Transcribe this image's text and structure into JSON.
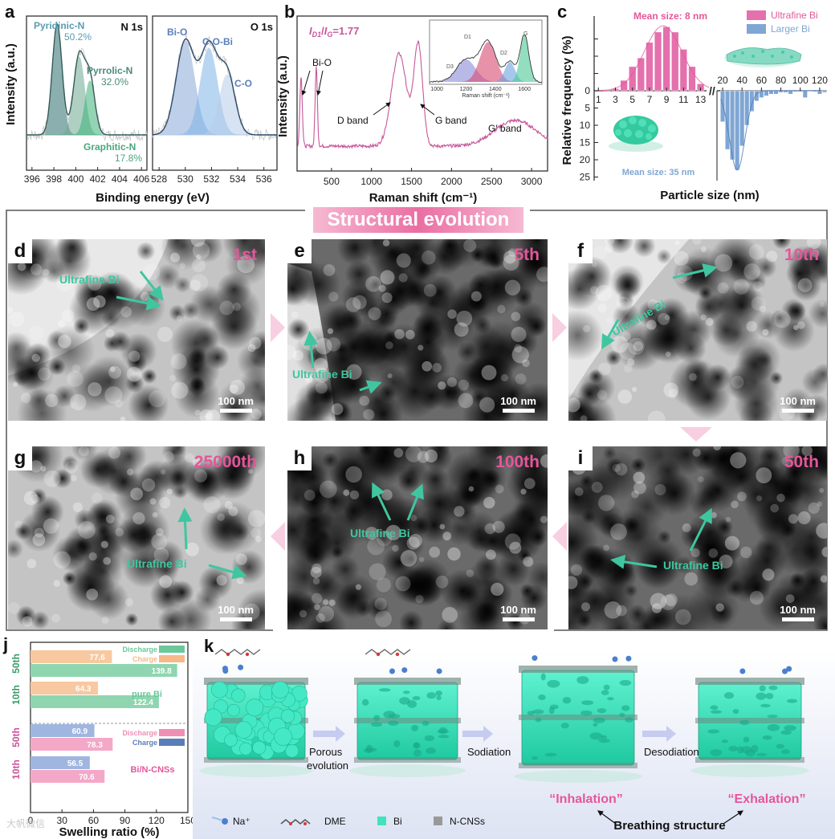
{
  "panels": {
    "a": {
      "letter": "a",
      "n1s_title": "N 1s",
      "o1s_title": "O 1s",
      "ylabel": "Intensity (a.u.)",
      "xlabel": "Binding energy (eV)",
      "n_labels": {
        "pyridinic": "Pyridinic-N",
        "pyridinic_pct": "50.2%",
        "pyrrolic": "Pyrrolic-N",
        "pyrrolic_pct": "32.0%",
        "graphitic": "Graphitic-N",
        "graphitic_pct": "17.8%"
      },
      "o_labels": {
        "bio": "Bi-O",
        "cobi": "C-O-Bi",
        "co": "C-O"
      }
    },
    "b": {
      "letter": "b",
      "ratio_label": "I_D1/I_G=1.77",
      "ratio_parts": [
        "I",
        "D1",
        "/",
        "I",
        "G",
        "=1.77"
      ],
      "ylabel": "Intensity (a.u.)",
      "xlabel": "Raman shift (cm⁻¹)",
      "ann_bio": "Bi-O",
      "ann_d": "D band",
      "ann_g": "G band",
      "ann_g2": "G′ band",
      "inset": {
        "xlabel": "Raman shift (cm⁻¹)",
        "ticks": [
          "1000",
          "1200",
          "1400",
          "1600"
        ],
        "peaks": [
          "D3",
          "D1",
          "D2",
          "G"
        ]
      }
    },
    "c": {
      "letter": "c",
      "ylabel": "Relative frequency (%)",
      "xlabel": "Particle size (nm)",
      "legend_ultra": "Ultrafine Bi",
      "legend_larger": "Larger Bi",
      "mean_ultra": "Mean size: 8 nm",
      "mean_larger": "Mean size: 35 nm",
      "break_mark": "//"
    },
    "j": {
      "letter": "j",
      "xlabel": "Swelling ratio (%)",
      "legend_discharge": "Discharge",
      "legend_charge": "Charge",
      "group_pure": "pure Bi",
      "group_bincns": "Bi/N-CNSs"
    },
    "k": {
      "letter": "k",
      "porous": "Porous\nevolution",
      "porous_l1": "Porous",
      "porous_l2": "evolution",
      "sodiation": "Sodiation",
      "desodiation": "Desodiation",
      "inhalation": "“Inhalation”",
      "exhalation": "“Exhalation”",
      "breathing": "Breathing structure",
      "legend_na": "Na⁺",
      "legend_dme": "DME",
      "legend_bi": "Bi",
      "legend_ncns": "N-CNSs"
    }
  },
  "structural_title": "Structural evolution",
  "tem": [
    {
      "letter": "d",
      "cycle": "1st",
      "scale": "100 nm",
      "label": "Ultrafine Bi"
    },
    {
      "letter": "e",
      "cycle": "5th",
      "scale": "100 nm",
      "label": "Ultrafine Bi"
    },
    {
      "letter": "f",
      "cycle": "10th",
      "scale": "100 nm",
      "label": "Ultrafine Bi"
    },
    {
      "letter": "g",
      "cycle": "25000th",
      "scale": "100 nm",
      "label": "Ultrafine Bi"
    },
    {
      "letter": "h",
      "cycle": "100th",
      "scale": "100 nm",
      "label": "Ultrafine Bi"
    },
    {
      "letter": "i",
      "cycle": "50th",
      "scale": "100 nm",
      "label": "Ultrafine Bi"
    }
  ],
  "watermark": "大帆微信",
  "colors": {
    "pink": "#e5569a",
    "green": "#3fc6a0",
    "blue": "#7fa6d4",
    "orange": "#f6b98a",
    "teal": "#2e8b7f"
  },
  "chart_data": [
    {
      "id": "a-N1s",
      "type": "line",
      "title": "N 1s",
      "xlabel": "Binding energy (eV)",
      "ylabel": "Intensity (a.u.)",
      "xlim": [
        395.5,
        406.5
      ],
      "x_ticks": [
        396,
        398,
        400,
        402,
        404,
        406
      ],
      "peaks": [
        {
          "name": "Pyridinic-N",
          "center": 398.3,
          "height": 0.92,
          "share": 50.2
        },
        {
          "name": "Pyrrolic-N",
          "center": 400.3,
          "height": 0.65,
          "share": 32.0
        },
        {
          "name": "Graphitic-N",
          "center": 401.3,
          "height": 0.45,
          "share": 17.8
        }
      ]
    },
    {
      "id": "a-O1s",
      "type": "line",
      "title": "O 1s",
      "xlabel": "Binding energy (eV)",
      "ylabel": "Intensity (a.u.)",
      "xlim": [
        527.5,
        537
      ],
      "x_ticks": [
        528,
        530,
        532,
        534,
        536
      ],
      "peaks": [
        {
          "name": "Bi-O",
          "center": 530.0,
          "height": 0.78
        },
        {
          "name": "C-O-Bi",
          "center": 531.8,
          "height": 0.72
        },
        {
          "name": "C-O",
          "center": 533.2,
          "height": 0.5
        }
      ]
    },
    {
      "id": "b-Raman",
      "type": "line",
      "title": "",
      "xlabel": "Raman shift (cm⁻¹)",
      "ylabel": "Intensity (a.u.)",
      "xlim": [
        70,
        3200
      ],
      "x_ticks": [
        500,
        1000,
        1500,
        2000,
        2500,
        3000
      ],
      "bands": [
        {
          "name": "Bi-O",
          "center": 120,
          "height": 0.55
        },
        {
          "name": "Bi-O",
          "center": 310,
          "height": 0.62
        },
        {
          "name": "D band",
          "center": 1345,
          "height": 0.72
        },
        {
          "name": "G band",
          "center": 1585,
          "height": 0.78
        },
        {
          "name": "G′ band",
          "center": 2800,
          "height": 0.2
        }
      ],
      "inset": {
        "xlim": [
          950,
          1720
        ],
        "x_ticks": [
          1000,
          1200,
          1400,
          1600
        ],
        "peaks": [
          {
            "name": "D3",
            "center": 1200,
            "height": 0.45
          },
          {
            "name": "D1",
            "center": 1350,
            "height": 0.8
          },
          {
            "name": "D2",
            "center": 1500,
            "height": 0.4
          },
          {
            "name": "G",
            "center": 1600,
            "height": 0.95
          }
        ]
      }
    },
    {
      "id": "c-size-ultrafine",
      "type": "bar",
      "series": "Ultrafine Bi",
      "xlabel": "Particle size (nm)",
      "ylabel": "Relative frequency (%)",
      "x": [
        1,
        2,
        3,
        4,
        5,
        6,
        7,
        8,
        9,
        10,
        11,
        12,
        13
      ],
      "values": [
        0,
        0.3,
        0.6,
        3,
        7,
        9.5,
        14,
        17,
        18.5,
        17,
        12,
        7,
        2
      ],
      "x_ticks": [
        1,
        3,
        5,
        7,
        9,
        11,
        13
      ],
      "ylim": [
        0,
        25
      ],
      "y_ticks": [
        0,
        5,
        10,
        15,
        20,
        25
      ]
    },
    {
      "id": "c-size-larger",
      "type": "bar",
      "series": "Larger Bi",
      "xlabel": "Particle size (nm)",
      "ylabel": "Relative frequency (%)",
      "x": [
        20,
        25,
        30,
        35,
        40,
        45,
        50,
        55,
        60,
        65,
        70,
        75,
        80,
        85,
        90,
        95,
        100,
        105,
        110,
        115,
        120,
        125
      ],
      "values": [
        9,
        17,
        20,
        23,
        16,
        10,
        6,
        3,
        2,
        1.5,
        1,
        1,
        0.5,
        0.5,
        1,
        0.3,
        0.3,
        2,
        0.2,
        0.3,
        1,
        0.5
      ],
      "x_ticks": [
        20,
        40,
        60,
        80,
        100,
        120
      ],
      "ylim": [
        0,
        25
      ],
      "y_ticks": [
        0,
        5,
        10,
        15,
        20,
        25
      ]
    },
    {
      "id": "j-swelling",
      "type": "bar",
      "orientation": "horizontal",
      "xlabel": "Swelling ratio (%)",
      "xlim": [
        0,
        150
      ],
      "x_ticks": [
        0,
        30,
        60,
        90,
        120,
        150
      ],
      "groups": [
        {
          "name": "pure Bi",
          "rows": [
            {
              "cycle": "50th",
              "charge": 77.6,
              "discharge": 139.8
            },
            {
              "cycle": "10th",
              "charge": 64.3,
              "discharge": 122.4
            }
          ]
        },
        {
          "name": "Bi/N-CNSs",
          "rows": [
            {
              "cycle": "50th",
              "charge": 60.9,
              "discharge": 78.3
            },
            {
              "cycle": "10th",
              "charge": 56.5,
              "discharge": 70.6
            }
          ]
        }
      ]
    }
  ]
}
